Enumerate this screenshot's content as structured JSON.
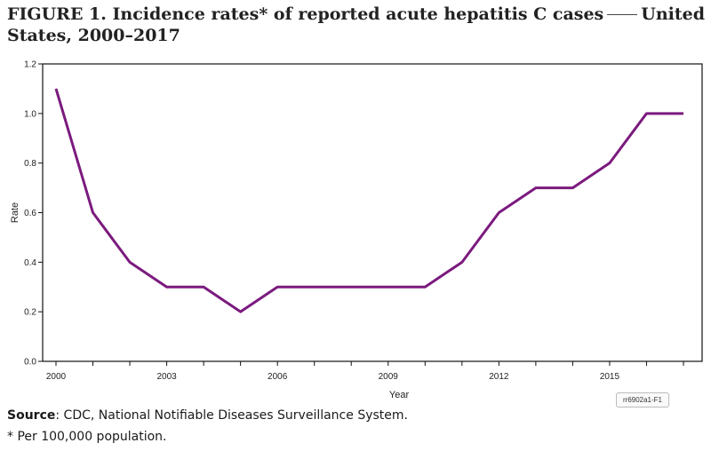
{
  "figure": {
    "title_main": "FIGURE 1. Incidence rates* of reported acute hepatitis C cases",
    "title_tail": "United States, 2000–2017",
    "badge": "rr6902a1-F1",
    "source_label": "Source",
    "source_text": ": CDC, National Notifiable Diseases Surveillance System.",
    "footnote": "* Per 100,000 population."
  },
  "chart_data": {
    "type": "line",
    "xlabel": "Year",
    "ylabel": "Rate",
    "x": [
      2000,
      2001,
      2002,
      2003,
      2004,
      2005,
      2006,
      2007,
      2008,
      2009,
      2010,
      2011,
      2012,
      2013,
      2014,
      2015,
      2016,
      2017
    ],
    "series": [
      {
        "values": [
          1.1,
          0.6,
          0.4,
          0.3,
          0.3,
          0.2,
          0.3,
          0.3,
          0.3,
          0.3,
          0.3,
          0.4,
          0.6,
          0.7,
          0.7,
          0.8,
          1.0,
          1.0
        ],
        "color": "#7b1a7e"
      }
    ],
    "xlim": [
      2000,
      2017
    ],
    "ylim": [
      0,
      1.2
    ],
    "xticks": [
      2000,
      2003,
      2006,
      2009,
      2012,
      2015
    ],
    "yticks": [
      "0.0",
      "0.2",
      "0.4",
      "0.6",
      "0.8",
      "1.0",
      "1.2"
    ],
    "grid": false
  }
}
